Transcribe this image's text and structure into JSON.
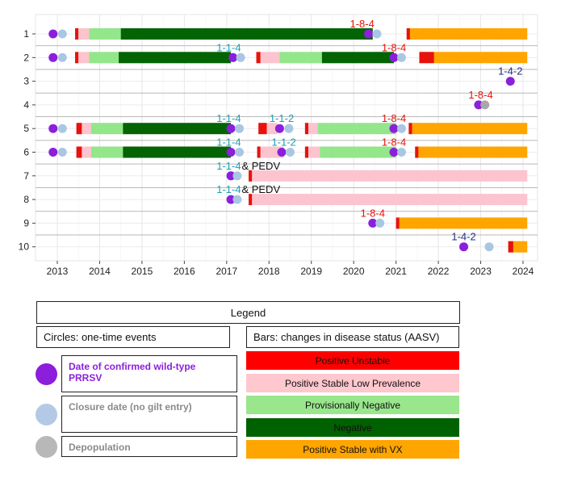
{
  "chart_data": {
    "type": "timeline",
    "y_categories": [
      "1",
      "2",
      "3",
      "4",
      "5",
      "6",
      "7",
      "8",
      "9",
      "10"
    ],
    "x_ticks": [
      "2013",
      "2014",
      "2015",
      "2016",
      "2017",
      "2018",
      "2019",
      "2020",
      "2021",
      "2022",
      "2023",
      "2024"
    ],
    "xlim": [
      2012.5,
      2024.3
    ],
    "grid": true,
    "status_colors": {
      "Positive Unstable": "#e8120c",
      "Positive Stable Low Prevalence": "#fbc4cf",
      "Provisionally Negative": "#93e68a",
      "Negative": "#046404",
      "Positive Stable with VX": "#ffa500"
    },
    "event_colors": {
      "wild": "#8b1fdc",
      "closure": "#a9c7e3",
      "depop": "#a8a8a8"
    },
    "bars": [
      {
        "row": 1,
        "segments": [
          {
            "start": 2013.42,
            "end": 2013.5,
            "status": "Positive Unstable"
          },
          {
            "start": 2013.5,
            "end": 2013.75,
            "status": "Positive Stable Low Prevalence"
          },
          {
            "start": 2013.75,
            "end": 2014.5,
            "status": "Provisionally Negative"
          },
          {
            "start": 2014.5,
            "end": 2020.45,
            "status": "Negative"
          },
          {
            "start": 2021.25,
            "end": 2021.33,
            "status": "Positive Unstable"
          },
          {
            "start": 2021.33,
            "end": 2024.1,
            "status": "Positive Stable with VX"
          }
        ]
      },
      {
        "row": 2,
        "segments": [
          {
            "start": 2013.42,
            "end": 2013.5,
            "status": "Positive Unstable"
          },
          {
            "start": 2013.5,
            "end": 2013.75,
            "status": "Positive Stable Low Prevalence"
          },
          {
            "start": 2013.75,
            "end": 2014.45,
            "status": "Provisionally Negative"
          },
          {
            "start": 2014.45,
            "end": 2017.1,
            "status": "Negative"
          },
          {
            "start": 2017.7,
            "end": 2017.8,
            "status": "Positive Unstable"
          },
          {
            "start": 2017.8,
            "end": 2018.25,
            "status": "Positive Stable Low Prevalence"
          },
          {
            "start": 2018.25,
            "end": 2019.25,
            "status": "Provisionally Negative"
          },
          {
            "start": 2019.25,
            "end": 2020.95,
            "status": "Negative"
          },
          {
            "start": 2021.55,
            "end": 2021.9,
            "status": "Positive Unstable"
          },
          {
            "start": 2021.9,
            "end": 2024.1,
            "status": "Positive Stable with VX"
          }
        ]
      },
      {
        "row": 5,
        "segments": [
          {
            "start": 2013.45,
            "end": 2013.58,
            "status": "Positive Unstable"
          },
          {
            "start": 2013.58,
            "end": 2013.8,
            "status": "Positive Stable Low Prevalence"
          },
          {
            "start": 2013.8,
            "end": 2014.55,
            "status": "Provisionally Negative"
          },
          {
            "start": 2014.55,
            "end": 2017.1,
            "status": "Negative"
          },
          {
            "start": 2017.75,
            "end": 2017.95,
            "status": "Positive Unstable"
          },
          {
            "start": 2017.95,
            "end": 2018.2,
            "status": "Positive Stable Low Prevalence"
          },
          {
            "start": 2018.85,
            "end": 2018.93,
            "status": "Positive Unstable"
          },
          {
            "start": 2018.93,
            "end": 2019.15,
            "status": "Positive Stable Low Prevalence"
          },
          {
            "start": 2019.15,
            "end": 2021.0,
            "status": "Provisionally Negative"
          },
          {
            "start": 2021.3,
            "end": 2021.38,
            "status": "Positive Unstable"
          },
          {
            "start": 2021.38,
            "end": 2024.1,
            "status": "Positive Stable with VX"
          }
        ]
      },
      {
        "row": 6,
        "segments": [
          {
            "start": 2013.45,
            "end": 2013.58,
            "status": "Positive Unstable"
          },
          {
            "start": 2013.58,
            "end": 2013.8,
            "status": "Positive Stable Low Prevalence"
          },
          {
            "start": 2013.8,
            "end": 2014.55,
            "status": "Provisionally Negative"
          },
          {
            "start": 2014.55,
            "end": 2017.1,
            "status": "Negative"
          },
          {
            "start": 2017.72,
            "end": 2017.8,
            "status": "Positive Unstable"
          },
          {
            "start": 2017.8,
            "end": 2018.35,
            "status": "Positive Stable Low Prevalence"
          },
          {
            "start": 2018.85,
            "end": 2018.93,
            "status": "Positive Unstable"
          },
          {
            "start": 2018.93,
            "end": 2019.2,
            "status": "Positive Stable Low Prevalence"
          },
          {
            "start": 2019.2,
            "end": 2021.0,
            "status": "Provisionally Negative"
          },
          {
            "start": 2021.45,
            "end": 2021.53,
            "status": "Positive Unstable"
          },
          {
            "start": 2021.53,
            "end": 2024.1,
            "status": "Positive Stable with VX"
          }
        ]
      },
      {
        "row": 7,
        "segments": [
          {
            "start": 2017.52,
            "end": 2017.6,
            "status": "Positive Unstable"
          },
          {
            "start": 2017.6,
            "end": 2024.1,
            "status": "Positive Stable Low Prevalence"
          }
        ]
      },
      {
        "row": 8,
        "segments": [
          {
            "start": 2017.52,
            "end": 2017.6,
            "status": "Positive Unstable"
          },
          {
            "start": 2017.6,
            "end": 2024.1,
            "status": "Positive Stable Low Prevalence"
          }
        ]
      },
      {
        "row": 9,
        "segments": [
          {
            "start": 2021.0,
            "end": 2021.08,
            "status": "Positive Unstable"
          },
          {
            "start": 2021.08,
            "end": 2024.1,
            "status": "Positive Stable with VX"
          }
        ]
      },
      {
        "row": 10,
        "segments": [
          {
            "start": 2023.65,
            "end": 2023.77,
            "status": "Positive Unstable"
          },
          {
            "start": 2023.77,
            "end": 2024.1,
            "status": "Positive Stable with VX"
          }
        ]
      }
    ],
    "events": [
      {
        "row": 1,
        "x": 2012.9,
        "kind": "wild"
      },
      {
        "row": 1,
        "x": 2013.12,
        "kind": "closure"
      },
      {
        "row": 1,
        "x": 2020.35,
        "kind": "wild"
      },
      {
        "row": 1,
        "x": 2020.55,
        "kind": "closure"
      },
      {
        "row": 2,
        "x": 2012.9,
        "kind": "wild"
      },
      {
        "row": 2,
        "x": 2013.12,
        "kind": "closure"
      },
      {
        "row": 2,
        "x": 2017.15,
        "kind": "wild"
      },
      {
        "row": 2,
        "x": 2017.33,
        "kind": "closure"
      },
      {
        "row": 2,
        "x": 2020.95,
        "kind": "wild"
      },
      {
        "row": 2,
        "x": 2021.13,
        "kind": "closure"
      },
      {
        "row": 3,
        "x": 2023.7,
        "kind": "wild"
      },
      {
        "row": 4,
        "x": 2022.95,
        "kind": "wild"
      },
      {
        "row": 4,
        "x": 2023.1,
        "kind": "depop"
      },
      {
        "row": 5,
        "x": 2012.9,
        "kind": "wild"
      },
      {
        "row": 5,
        "x": 2013.12,
        "kind": "closure"
      },
      {
        "row": 5,
        "x": 2017.1,
        "kind": "wild"
      },
      {
        "row": 5,
        "x": 2017.3,
        "kind": "closure"
      },
      {
        "row": 5,
        "x": 2018.25,
        "kind": "wild"
      },
      {
        "row": 5,
        "x": 2018.47,
        "kind": "closure"
      },
      {
        "row": 5,
        "x": 2020.95,
        "kind": "wild"
      },
      {
        "row": 5,
        "x": 2021.13,
        "kind": "closure"
      },
      {
        "row": 6,
        "x": 2012.9,
        "kind": "wild"
      },
      {
        "row": 6,
        "x": 2013.12,
        "kind": "closure"
      },
      {
        "row": 6,
        "x": 2017.1,
        "kind": "wild"
      },
      {
        "row": 6,
        "x": 2017.3,
        "kind": "closure"
      },
      {
        "row": 6,
        "x": 2018.3,
        "kind": "wild"
      },
      {
        "row": 6,
        "x": 2018.5,
        "kind": "closure"
      },
      {
        "row": 6,
        "x": 2020.95,
        "kind": "wild"
      },
      {
        "row": 6,
        "x": 2021.13,
        "kind": "closure"
      },
      {
        "row": 7,
        "x": 2017.1,
        "kind": "wild"
      },
      {
        "row": 7,
        "x": 2017.25,
        "kind": "closure"
      },
      {
        "row": 8,
        "x": 2017.1,
        "kind": "wild"
      },
      {
        "row": 8,
        "x": 2017.25,
        "kind": "closure"
      },
      {
        "row": 9,
        "x": 2020.45,
        "kind": "wild"
      },
      {
        "row": 9,
        "x": 2020.62,
        "kind": "closure"
      },
      {
        "row": 10,
        "x": 2022.6,
        "kind": "wild"
      },
      {
        "row": 10,
        "x": 2023.2,
        "kind": "closure"
      }
    ],
    "annotations": [
      {
        "row": 1,
        "x": 2020.2,
        "text": "1-8-4",
        "color": "#e8120c"
      },
      {
        "row": 2,
        "x": 2017.05,
        "text": "1-1-4",
        "color": "#1aa0b8"
      },
      {
        "row": 2,
        "x": 2020.95,
        "text": "1-8-4",
        "color": "#e8120c"
      },
      {
        "row": 3,
        "x": 2023.7,
        "text": "1-4-2",
        "color": "#1f2f80"
      },
      {
        "row": 4,
        "x": 2023.0,
        "text": "1-8-4",
        "color": "#e8120c"
      },
      {
        "row": 5,
        "x": 2017.05,
        "text": "1-1-4",
        "color": "#1aa0b8"
      },
      {
        "row": 5,
        "x": 2018.3,
        "text": "1-1-2",
        "color": "#1aa0b8"
      },
      {
        "row": 5,
        "x": 2020.95,
        "text": "1-8-4",
        "color": "#e8120c"
      },
      {
        "row": 6,
        "x": 2017.05,
        "text": "1-1-4",
        "color": "#1aa0b8"
      },
      {
        "row": 6,
        "x": 2018.35,
        "text": "1-1-2",
        "color": "#1aa0b8"
      },
      {
        "row": 6,
        "x": 2020.95,
        "text": "1-8-4",
        "color": "#e8120c"
      },
      {
        "row": 7,
        "x": 2017.05,
        "text": "1-1-4",
        "color": "#1aa0b8",
        "suffix": "& PEDV"
      },
      {
        "row": 8,
        "x": 2017.05,
        "text": "1-1-4",
        "color": "#1aa0b8",
        "suffix": "& PEDV"
      },
      {
        "row": 9,
        "x": 2020.45,
        "text": "1-8-4",
        "color": "#e8120c"
      },
      {
        "row": 10,
        "x": 2022.6,
        "text": "1-4-2",
        "color": "#1f2f80"
      }
    ]
  },
  "legend": {
    "title": "Legend",
    "circles_header": "Circles: one-time events",
    "bars_header": "Bars: changes in disease status (AASV)",
    "circles": [
      {
        "label": "Date of confirmed wild-type PRRSV",
        "color": "#8b1fdc",
        "text_color": "#8b1fdc"
      },
      {
        "label": "Closure date (no gilt entry)",
        "color": "#b4c9e6",
        "text_color": "#8a8a8a"
      },
      {
        "label": "Depopulation",
        "color": "#b8b8b8",
        "text_color": "#8a8a8a"
      }
    ],
    "bars": [
      {
        "label": "Positive Unstable",
        "color": "#ff0000"
      },
      {
        "label": "Positive Stable Low Prevalence",
        "color": "#ffc7ce"
      },
      {
        "label": "Provisionally Negative",
        "color": "#99e68c"
      },
      {
        "label": "Negative",
        "color": "#006100"
      },
      {
        "label": "Positive Stable with VX",
        "color": "#ffa500"
      }
    ]
  }
}
